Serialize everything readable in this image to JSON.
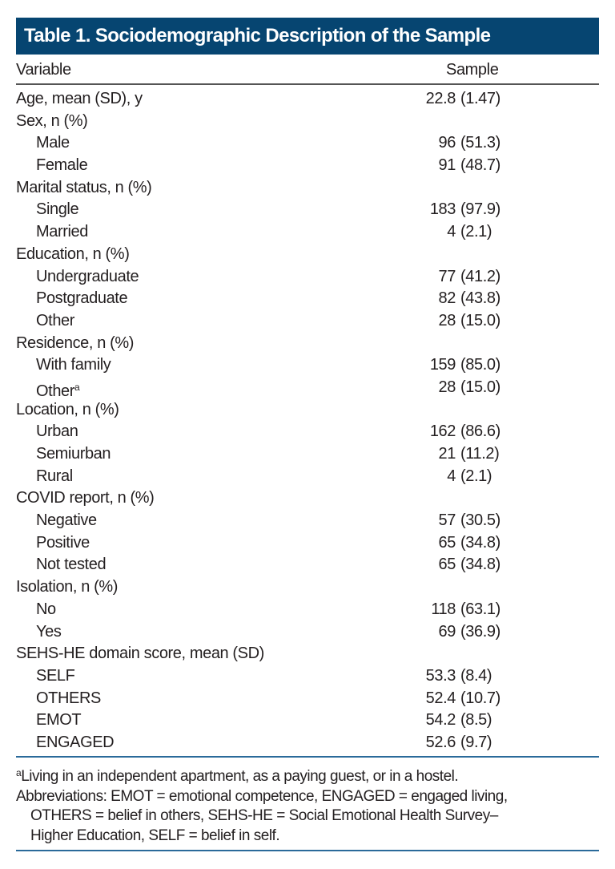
{
  "title": "Table 1. Sociodemographic Description of the Sample",
  "columns": [
    "Variable",
    "Sample"
  ],
  "rows": [
    {
      "label": "Age, mean (SD), y",
      "num": "22.8",
      "paren": "(1.47)",
      "sub": false
    },
    {
      "label": "Sex, n (%)",
      "sub": false
    },
    {
      "label": "Male",
      "num": "96",
      "paren": "(51.3)",
      "sub": true
    },
    {
      "label": "Female",
      "num": "91",
      "paren": "(48.7)",
      "sub": true
    },
    {
      "label": "Marital status, n (%)",
      "sub": false
    },
    {
      "label": "Single",
      "num": "183",
      "paren": "(97.9)",
      "sub": true
    },
    {
      "label": "Married",
      "num": "4",
      "paren": "(2.1)",
      "sub": true
    },
    {
      "label": "Education, n (%)",
      "sub": false
    },
    {
      "label": "Undergraduate",
      "num": "77",
      "paren": "(41.2)",
      "sub": true
    },
    {
      "label": "Postgraduate",
      "num": "82",
      "paren": "(43.8)",
      "sub": true
    },
    {
      "label": "Other",
      "num": "28",
      "paren": "(15.0)",
      "sub": true
    },
    {
      "label": "Residence, n (%)",
      "sub": false
    },
    {
      "label": "With family",
      "num": "159",
      "paren": "(85.0)",
      "sub": true
    },
    {
      "label": "Other",
      "sup": "a",
      "num": "28",
      "paren": "(15.0)",
      "sub": true
    },
    {
      "label": "Location, n (%)",
      "sub": false
    },
    {
      "label": "Urban",
      "num": "162",
      "paren": "(86.6)",
      "sub": true
    },
    {
      "label": "Semiurban",
      "num": "21",
      "paren": "(11.2)",
      "sub": true
    },
    {
      "label": "Rural",
      "num": "4",
      "paren": "(2.1)",
      "sub": true
    },
    {
      "label": "COVID report, n (%)",
      "sub": false
    },
    {
      "label": "Negative",
      "num": "57",
      "paren": "(30.5)",
      "sub": true
    },
    {
      "label": "Positive",
      "num": "65",
      "paren": "(34.8)",
      "sub": true
    },
    {
      "label": "Not tested",
      "num": "65",
      "paren": "(34.8)",
      "sub": true
    },
    {
      "label": "Isolation, n (%)",
      "sub": false
    },
    {
      "label": "No",
      "num": "118",
      "paren": "(63.1)",
      "sub": true
    },
    {
      "label": "Yes",
      "num": "69",
      "paren": "(36.9)",
      "sub": true
    },
    {
      "label": "SEHS-HE domain score, mean (SD)",
      "sub": false
    },
    {
      "label": "SELF",
      "num": "53.3",
      "paren": "(8.4)",
      "sub": true
    },
    {
      "label": "OTHERS",
      "num": "52.4",
      "paren": "(10.7)",
      "sub": true
    },
    {
      "label": "EMOT",
      "num": "54.2",
      "paren": "(8.5)",
      "sub": true
    },
    {
      "label": "ENGAGED",
      "num": "52.6",
      "paren": "(9.7)",
      "sub": true
    }
  ],
  "footnotes": {
    "a_mark": "a",
    "a_text": "Living in an independent apartment, as a paying guest, or in a hostel.",
    "abbr_line1": "Abbreviations: EMOT = emotional competence, ENGAGED = engaged living,",
    "abbr_line2": "OTHERS = belief in others, SEHS-HE = Social Emotional Health Survey–",
    "abbr_line3": "Higher Education, SELF = belief in self."
  },
  "colors": {
    "title_bg": "#064571",
    "rule": "#2a6a9a"
  }
}
